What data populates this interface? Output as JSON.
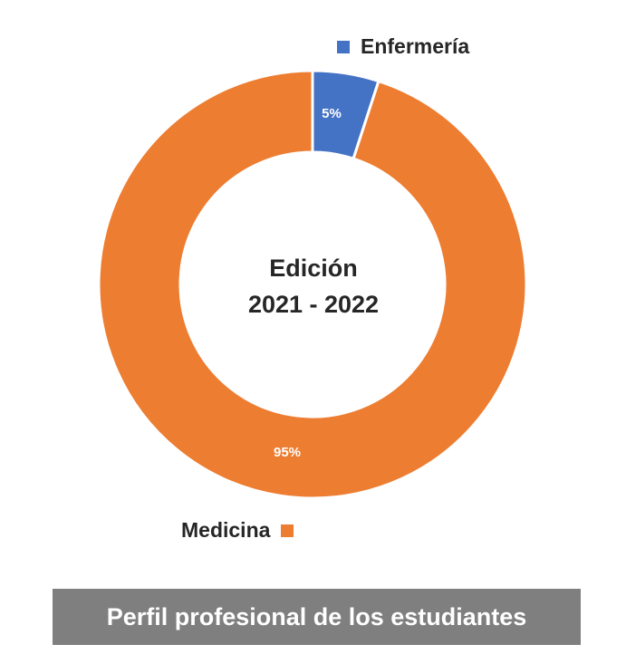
{
  "chart_data": {
    "type": "pie",
    "center_text": [
      "Edición",
      "2021 - 2022"
    ],
    "categories": [
      "Enfermería",
      "Medicina"
    ],
    "values": [
      5,
      95
    ],
    "data_labels": [
      "5%",
      "95%"
    ],
    "colors": [
      "#4472C4",
      "#ED7D31"
    ],
    "legend_position": "outside-labels"
  },
  "footer": {
    "text": "Perfil profesional de los estudiantes"
  }
}
